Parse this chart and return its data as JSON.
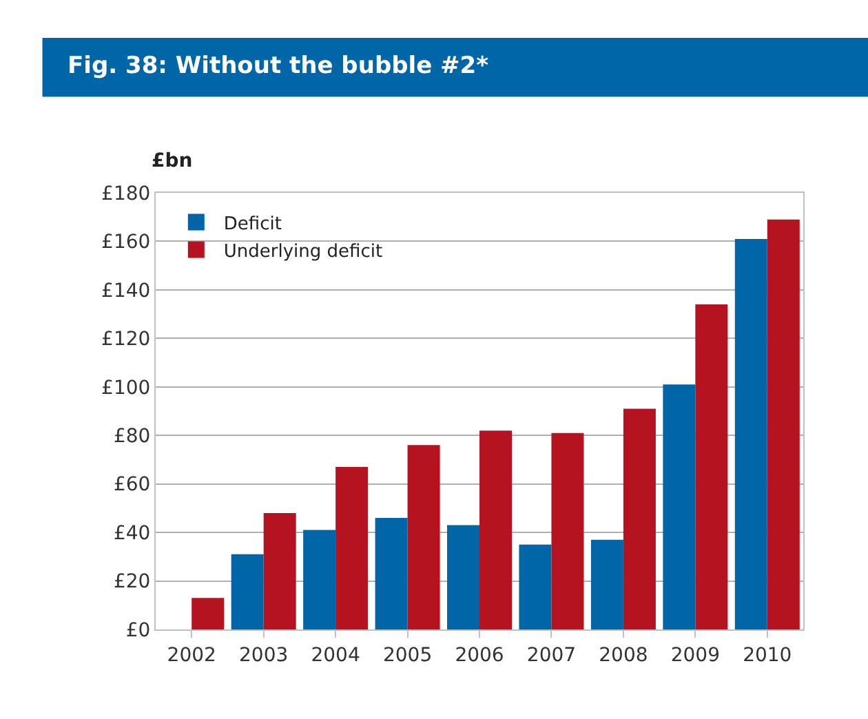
{
  "chart_data": {
    "type": "bar",
    "title": "Fig. 38: Without the bubble #2*",
    "ylabel": "£bn",
    "categories": [
      "2002",
      "2003",
      "2004",
      "2005",
      "2006",
      "2007",
      "2008",
      "2009",
      "2010"
    ],
    "series": [
      {
        "name": "Deficit",
        "color": "#0066a8",
        "values": [
          null,
          31,
          41,
          46,
          43,
          35,
          37,
          101,
          161
        ]
      },
      {
        "name": "Underlying deficit",
        "color": "#b5131f",
        "values": [
          13,
          48,
          67,
          76,
          82,
          81,
          91,
          134,
          169
        ]
      }
    ],
    "ylim": [
      0,
      180
    ],
    "yticks": [
      {
        "value": 0,
        "label": "£0"
      },
      {
        "value": 20,
        "label": "£20"
      },
      {
        "value": 40,
        "label": "£40"
      },
      {
        "value": 60,
        "label": "£60"
      },
      {
        "value": 80,
        "label": "£80"
      },
      {
        "value": 100,
        "label": "£100"
      },
      {
        "value": 120,
        "label": "£120"
      },
      {
        "value": 140,
        "label": "£140"
      },
      {
        "value": 160,
        "label": "£160"
      },
      {
        "value": 180,
        "label": "£180"
      }
    ],
    "grid": "y",
    "legend": "top left"
  }
}
